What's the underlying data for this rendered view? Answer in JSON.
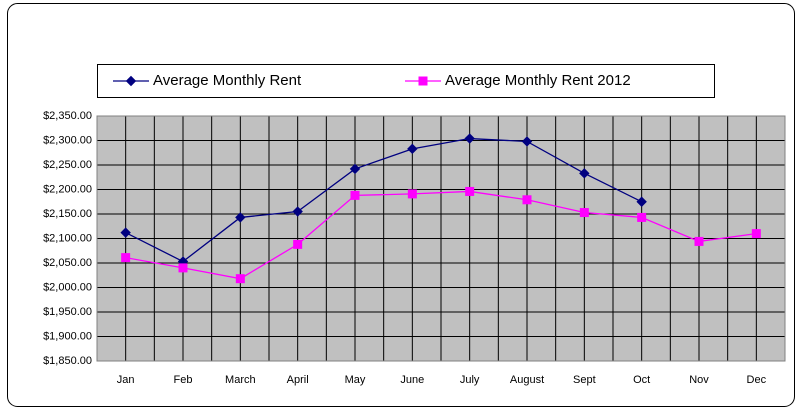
{
  "chart_data": {
    "type": "line",
    "categories": [
      "Jan",
      "Feb",
      "March",
      "April",
      "May",
      "June",
      "July",
      "August",
      "Sept",
      "Oct",
      "Nov",
      "Dec"
    ],
    "series": [
      {
        "name": "Average Monthly Rent",
        "color": "#000080",
        "marker": "diamond",
        "values": [
          2112,
          2053,
          2143,
          2155,
          2242,
          2283,
          2304,
          2298,
          2233,
          2175,
          null,
          null
        ]
      },
      {
        "name": "Average Monthly Rent 2012",
        "color": "#ff00ff",
        "marker": "square",
        "values": [
          2061,
          2040,
          2018,
          2088,
          2188,
          2191,
          2196,
          2179,
          2153,
          2143,
          2094,
          2110
        ]
      }
    ],
    "ylim": [
      1850,
      2350
    ],
    "yticks": [
      {
        "value": 1850,
        "label": "$1,850.00"
      },
      {
        "value": 1900,
        "label": "$1,900.00"
      },
      {
        "value": 1950,
        "label": "$1,950.00"
      },
      {
        "value": 2000,
        "label": "$2,000.00"
      },
      {
        "value": 2050,
        "label": "$2,050.00"
      },
      {
        "value": 2100,
        "label": "$2,100.00"
      },
      {
        "value": 2150,
        "label": "$2,150.00"
      },
      {
        "value": 2200,
        "label": "$2,200.00"
      },
      {
        "value": 2250,
        "label": "$2,250.00"
      },
      {
        "value": 2300,
        "label": "$2,300.00"
      },
      {
        "value": 2350,
        "label": "$2,350.00"
      }
    ],
    "grid": true,
    "plot_background": "#c0c0c0",
    "legend": "top"
  }
}
